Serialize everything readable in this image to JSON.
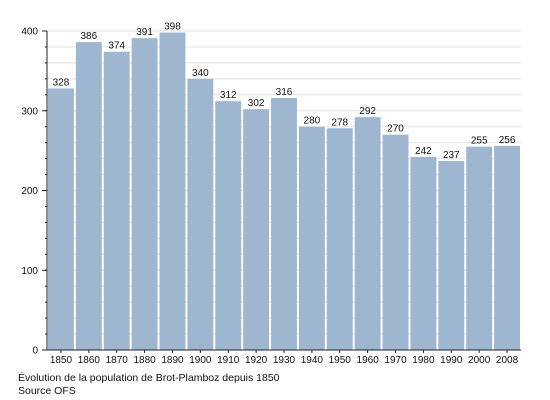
{
  "chart_data": {
    "type": "bar",
    "categories": [
      "1850",
      "1860",
      "1870",
      "1880",
      "1890",
      "1900",
      "1910",
      "1920",
      "1930",
      "1940",
      "1950",
      "1960",
      "1970",
      "1980",
      "1990",
      "2000",
      "2008"
    ],
    "values": [
      328,
      386,
      374,
      391,
      398,
      340,
      312,
      302,
      316,
      280,
      278,
      292,
      270,
      242,
      237,
      255,
      256
    ],
    "value_labels": [
      "328",
      "386",
      "374",
      "391",
      "398",
      "340",
      "312",
      "302",
      "316",
      "280",
      "278",
      "292",
      "270",
      "242",
      "237",
      "255",
      "256"
    ],
    "ylim": [
      0,
      400
    ],
    "yticks": [
      0,
      100,
      200,
      300,
      400
    ],
    "ytick_labels": [
      "0",
      "100",
      "200",
      "300",
      "400"
    ],
    "grid": true,
    "bar_color": "#9fb6d0",
    "title": "",
    "xlabel": "",
    "ylabel": ""
  },
  "caption": {
    "title": "Évolution de la population de Brot-Plamboz depuis 1850",
    "source": "Source OFS"
  }
}
